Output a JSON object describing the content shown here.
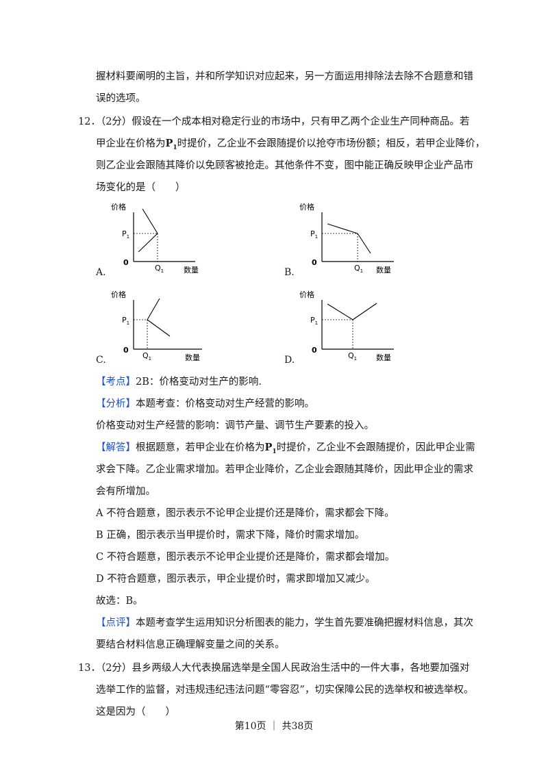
{
  "lines": [
    "握材料要阐明的主旨，并和所学知识对应起来，另一方面运用排除法去除不合题意和错",
    "误的选项。"
  ],
  "q12": {
    "number": "12．",
    "l1": "（2分）假设在一个成本相对稳定行业的市场中，只有甲乙两个企业生产同种商品。若",
    "l2a": "甲企业在价格为",
    "p1": "P",
    "p1sub": "1",
    "l2b": "时提价，乙企业不会跟随提价以抢夺市场份额；相反，若甲企业降价，",
    "l3": "则乙企业会跟随其降价以免顾客被抢走。其他条件不变，图中能正确反映甲企业产品市",
    "l4": "场变化的是（　　）"
  },
  "graphs": {
    "ylabel": "价格",
    "xlabel": "数量",
    "p": "P",
    "p_sub": "1",
    "q": "Q",
    "q_sub": "1",
    "origin": "0",
    "options": [
      "A.",
      "B.",
      "C.",
      "D."
    ]
  },
  "analysis": {
    "kaodian_tag": "【考点】",
    "kaodian": "2B：价格变动对生产的影响.",
    "fenxi_tag": "【分析】",
    "fenxi": "本题考查：价格变动对生产经营的影响。",
    "fenxi2": "价格变动对生产经营的影响：调节产量、调节生产要素的投入。",
    "jieda_tag": "【解答】",
    "jieda1a": "根据题意，若甲企业在价格为",
    "jieda1b": "时提价，乙企业不会跟随提价，因此甲企业需",
    "jieda2": "求会下降。乙企业需求增加。若甲企业降价，乙企业会跟随其降价，因此甲企业的需求",
    "jieda3": "会有所增加。",
    "a": "A 不符合题意，图示表示不论甲企业提价还是降价，需求都会下降。",
    "b": "B 正确，图示表示当甲提价时，需求下降，降价时需求增加。",
    "c": "C 不符合题意，图示表示不论甲企业提价还是降价，需求都会增加。",
    "d": "D 不符合题意，图示表示，甲企业提价时，需求即增加又减少。",
    "answer": "故选：B。",
    "dianping_tag": "【点评】",
    "dianping1": "本题考查学生运用知识分析图表的能力，学生首先要准确把握材料信息，其次",
    "dianping2": "要结合材料信息正确理解变量之间的关系。"
  },
  "q13": {
    "number": "13．",
    "l1": "（2分）县乡两级人大代表换届选举是全国人民政治生活中的一件大事，各地要加强对",
    "l2": "选举工作的监督，对违规违纪违法问题“零容忍”，切实保障公民的选举权和被选举权。",
    "l3": "这是因为（　　）"
  },
  "footer": "第10页 ｜ 共38页",
  "colors": {
    "tag": "#1f4fd1",
    "text": "#1a1a1a"
  }
}
